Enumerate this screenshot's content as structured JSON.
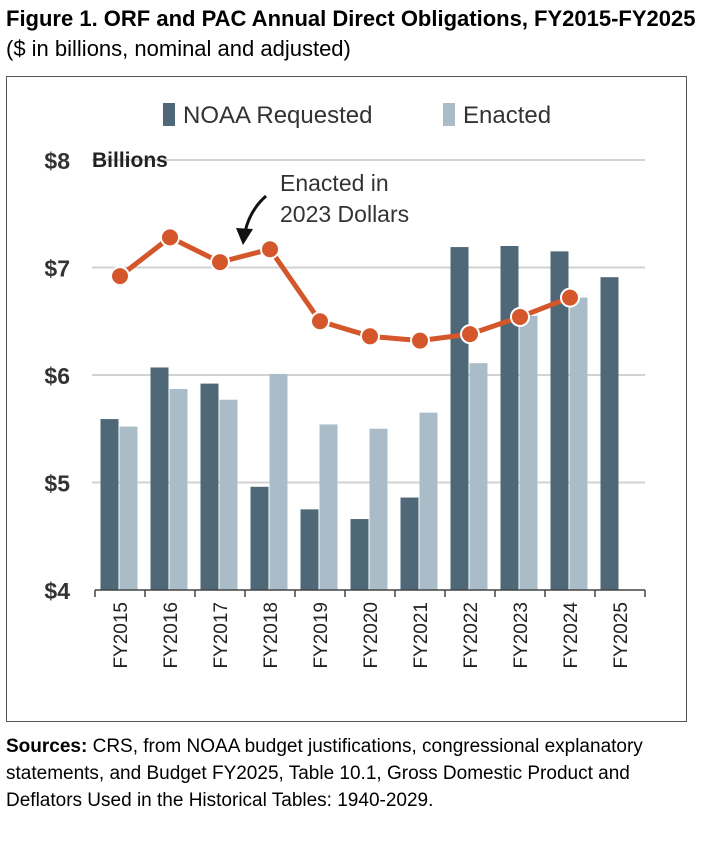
{
  "figure": {
    "title_bold": "Figure 1. ORF and PAC Annual Direct Obligations, FY2015-FY2025",
    "title_rest": " ($ in billions, nominal and adjusted)",
    "sources_label": "Sources:",
    "sources_text": " CRS, from NOAA budget justifications, congressional explanatory statements, and Budget FY2025, Table 10.1, Gross Domestic Product and Deflators Used in the Historical Tables: 1940-2029."
  },
  "chart_data": {
    "type": "bar",
    "unit_label": "Billions",
    "annotation": "Enacted in 2023 Dollars",
    "annotation_lines": [
      "Enacted in",
      "2023 Dollars"
    ],
    "categories": [
      "FY2015",
      "FY2016",
      "FY2017",
      "FY2018",
      "FY2019",
      "FY2020",
      "FY2021",
      "FY2022",
      "FY2023",
      "FY2024",
      "FY2025"
    ],
    "yticks": [
      "$8",
      "$7",
      "$6",
      "$5",
      "$4"
    ],
    "ylim": [
      4,
      8
    ],
    "grid": true,
    "legend_position": "top",
    "series": [
      {
        "name": "NOAA Requested",
        "type": "bar",
        "color": "#4f6878",
        "values": [
          5.59,
          6.07,
          5.92,
          4.96,
          4.75,
          4.66,
          4.86,
          7.19,
          7.2,
          7.15,
          6.91
        ]
      },
      {
        "name": "Enacted",
        "type": "bar",
        "color": "#a9bcc8",
        "values": [
          5.52,
          5.87,
          5.77,
          6.01,
          5.54,
          5.5,
          5.65,
          6.11,
          6.55,
          6.72,
          null
        ]
      },
      {
        "name": "Enacted in 2023 Dollars",
        "type": "line",
        "color": "#d4562b",
        "values": [
          6.92,
          7.28,
          7.05,
          7.17,
          6.5,
          6.36,
          6.32,
          6.38,
          6.54,
          6.72,
          null
        ]
      }
    ]
  }
}
